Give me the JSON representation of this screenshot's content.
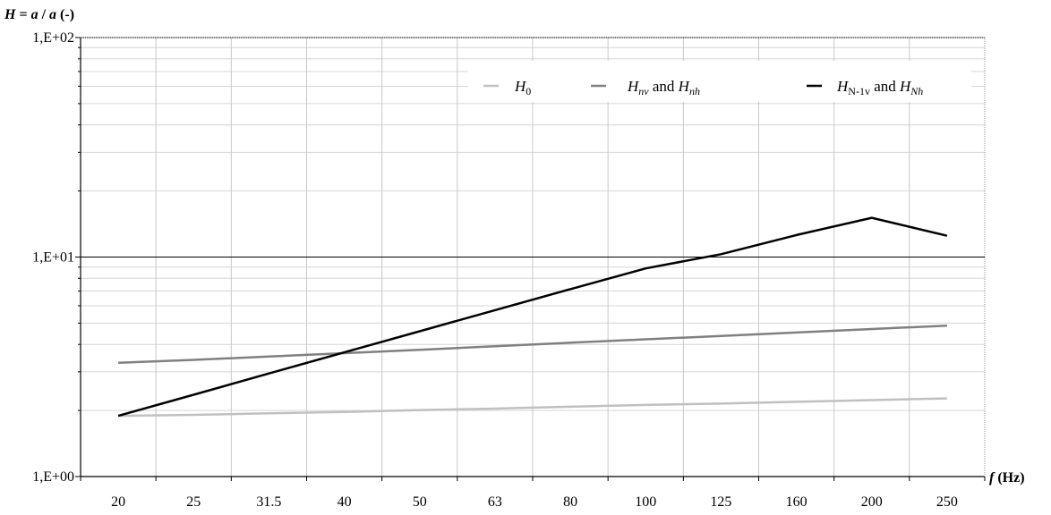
{
  "chart_data": {
    "type": "line",
    "y_scale": "log",
    "ylim": [
      1,
      100
    ],
    "y_ticks": [
      "1,E+00",
      "1,E+01",
      "1,E+02"
    ],
    "categories": [
      "20",
      "25",
      "31.5",
      "40",
      "50",
      "63",
      "80",
      "100",
      "125",
      "160",
      "200",
      "250"
    ],
    "ylabel": {
      "H": "H",
      "equals": " = ",
      "a1": "a",
      "slash": " / ",
      "a2": "a",
      "unit": "  (-)"
    },
    "xlabel": {
      "f": "f",
      "unit": " (Hz)"
    },
    "grid": true,
    "legend_position": "top-right",
    "series": [
      {
        "key": "h0",
        "color": "#c0c0c0",
        "legend": {
          "main": "H",
          "sub": "0"
        },
        "values": [
          1.89,
          1.91,
          1.94,
          1.97,
          2.01,
          2.04,
          2.08,
          2.12,
          2.15,
          2.19,
          2.23,
          2.27
        ]
      },
      {
        "key": "hnv",
        "color": "#808080",
        "legend": {
          "main1": "H",
          "sub1": "nv",
          "and": " and ",
          "main2": "H",
          "sub2": "nh"
        },
        "values": [
          3.3,
          3.4,
          3.52,
          3.65,
          3.78,
          3.92,
          4.07,
          4.22,
          4.37,
          4.53,
          4.7,
          4.87
        ]
      },
      {
        "key": "hn1",
        "color": "#000000",
        "legend": {
          "main1": "H",
          "sub1": "N-1v",
          "and": " and ",
          "main2": "H",
          "sub2": "Nh"
        },
        "values": [
          1.89,
          2.36,
          2.95,
          3.68,
          4.59,
          5.73,
          7.14,
          8.88,
          10.3,
          12.6,
          15.1,
          12.5
        ]
      }
    ]
  }
}
